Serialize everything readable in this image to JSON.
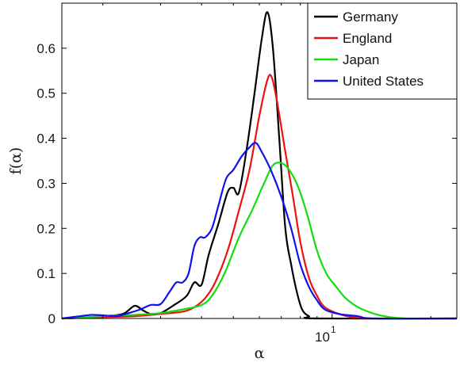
{
  "chart_data": {
    "type": "line",
    "title": "",
    "xlabel": "α",
    "ylabel": "f(α)",
    "x_scale": "log",
    "x_tick_base": "10",
    "x_tick_exponent": "1",
    "xlim": [
      1.5,
      24
    ],
    "ylim": [
      0,
      0.7
    ],
    "y_ticks": [
      "0",
      "0.1",
      "0.2",
      "0.3",
      "0.4",
      "0.5",
      "0.6"
    ],
    "y_tick_values": [
      0,
      0.1,
      0.2,
      0.3,
      0.4,
      0.5,
      0.6
    ],
    "grid": false,
    "legend_position": "top-right",
    "series": [
      {
        "name": "Germany",
        "color": "#000000",
        "points": [
          [
            1.5,
            0
          ],
          [
            1.8,
            0.002
          ],
          [
            2.0,
            0.005
          ],
          [
            2.3,
            0.01
          ],
          [
            2.5,
            0.028
          ],
          [
            2.65,
            0.018
          ],
          [
            2.8,
            0.01
          ],
          [
            3.0,
            0.012
          ],
          [
            3.3,
            0.03
          ],
          [
            3.6,
            0.05
          ],
          [
            3.8,
            0.08
          ],
          [
            4.0,
            0.075
          ],
          [
            4.2,
            0.14
          ],
          [
            4.5,
            0.21
          ],
          [
            4.8,
            0.28
          ],
          [
            5.0,
            0.29
          ],
          [
            5.2,
            0.28
          ],
          [
            5.5,
            0.38
          ],
          [
            5.8,
            0.5
          ],
          [
            6.1,
            0.62
          ],
          [
            6.35,
            0.68
          ],
          [
            6.6,
            0.6
          ],
          [
            6.9,
            0.4
          ],
          [
            7.2,
            0.2
          ],
          [
            7.5,
            0.12
          ],
          [
            7.8,
            0.06
          ],
          [
            8.1,
            0.02
          ],
          [
            8.5,
            0.005
          ],
          [
            9.0,
            0
          ],
          [
            24,
            0
          ]
        ]
      },
      {
        "name": "England",
        "color": "#ee1111",
        "points": [
          [
            1.5,
            0
          ],
          [
            2.0,
            0.003
          ],
          [
            2.5,
            0.005
          ],
          [
            3.0,
            0.01
          ],
          [
            3.5,
            0.015
          ],
          [
            3.8,
            0.025
          ],
          [
            4.1,
            0.045
          ],
          [
            4.4,
            0.08
          ],
          [
            4.8,
            0.15
          ],
          [
            5.2,
            0.24
          ],
          [
            5.6,
            0.33
          ],
          [
            6.0,
            0.45
          ],
          [
            6.35,
            0.53
          ],
          [
            6.55,
            0.535
          ],
          [
            6.8,
            0.48
          ],
          [
            7.2,
            0.37
          ],
          [
            7.6,
            0.27
          ],
          [
            8.0,
            0.17
          ],
          [
            8.5,
            0.09
          ],
          [
            9.0,
            0.05
          ],
          [
            9.5,
            0.025
          ],
          [
            10.5,
            0.01
          ],
          [
            11.5,
            0.003
          ],
          [
            13.0,
            0
          ],
          [
            24,
            0
          ]
        ]
      },
      {
        "name": "Japan",
        "color": "#11dd11",
        "points": [
          [
            1.5,
            0
          ],
          [
            2.0,
            0.005
          ],
          [
            2.5,
            0.008
          ],
          [
            3.0,
            0.012
          ],
          [
            3.5,
            0.02
          ],
          [
            4.0,
            0.03
          ],
          [
            4.3,
            0.05
          ],
          [
            4.7,
            0.1
          ],
          [
            5.2,
            0.18
          ],
          [
            5.7,
            0.24
          ],
          [
            6.2,
            0.3
          ],
          [
            6.6,
            0.34
          ],
          [
            7.0,
            0.345
          ],
          [
            7.4,
            0.33
          ],
          [
            7.9,
            0.29
          ],
          [
            8.4,
            0.23
          ],
          [
            9.0,
            0.15
          ],
          [
            9.6,
            0.1
          ],
          [
            10.3,
            0.07
          ],
          [
            11.0,
            0.045
          ],
          [
            12.0,
            0.025
          ],
          [
            13.5,
            0.01
          ],
          [
            15.0,
            0.003
          ],
          [
            17.0,
            0
          ],
          [
            24,
            0
          ]
        ]
      },
      {
        "name": "United States",
        "color": "#1111ee",
        "points": [
          [
            1.5,
            0
          ],
          [
            1.7,
            0.005
          ],
          [
            1.85,
            0.008
          ],
          [
            2.0,
            0.007
          ],
          [
            2.2,
            0.005
          ],
          [
            2.4,
            0.012
          ],
          [
            2.6,
            0.02
          ],
          [
            2.8,
            0.03
          ],
          [
            3.0,
            0.032
          ],
          [
            3.2,
            0.06
          ],
          [
            3.35,
            0.08
          ],
          [
            3.5,
            0.08
          ],
          [
            3.65,
            0.1
          ],
          [
            3.8,
            0.16
          ],
          [
            3.95,
            0.18
          ],
          [
            4.1,
            0.18
          ],
          [
            4.3,
            0.2
          ],
          [
            4.5,
            0.25
          ],
          [
            4.75,
            0.31
          ],
          [
            5.0,
            0.33
          ],
          [
            5.3,
            0.36
          ],
          [
            5.6,
            0.38
          ],
          [
            5.85,
            0.39
          ],
          [
            6.1,
            0.37
          ],
          [
            6.5,
            0.33
          ],
          [
            7.0,
            0.27
          ],
          [
            7.5,
            0.2
          ],
          [
            8.0,
            0.12
          ],
          [
            8.5,
            0.07
          ],
          [
            9.0,
            0.04
          ],
          [
            9.5,
            0.02
          ],
          [
            10.5,
            0.01
          ],
          [
            12.0,
            0.005
          ],
          [
            13.5,
            0
          ],
          [
            24,
            0
          ]
        ]
      }
    ]
  }
}
